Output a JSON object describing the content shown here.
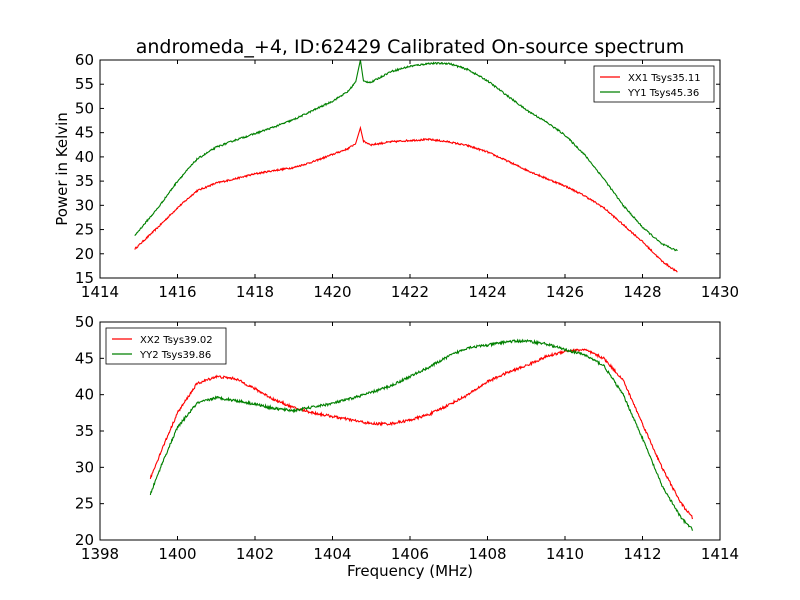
{
  "colors": {
    "xx": "#ff0000",
    "yy": "#008000",
    "axis": "#000000",
    "background": "#ffffff"
  },
  "chart_data": [
    {
      "type": "line",
      "title": "andromeda_+4, ID:62429 Calibrated On-source spectrum",
      "xlabel": "",
      "ylabel": "Power in Kelvin",
      "xlim": [
        1414,
        1430
      ],
      "ylim": [
        15,
        60
      ],
      "xticks": [
        1414,
        1416,
        1418,
        1420,
        1422,
        1424,
        1426,
        1428,
        1430
      ],
      "yticks": [
        15,
        20,
        25,
        30,
        35,
        40,
        45,
        50,
        55,
        60
      ],
      "legend_position": "top-right",
      "grid": false,
      "series": [
        {
          "name": "XX1 Tsys35.11",
          "color": "#ff0000",
          "x": [
            1414.9,
            1415.5,
            1416.0,
            1416.5,
            1417.0,
            1417.5,
            1418.0,
            1418.5,
            1419.0,
            1419.5,
            1420.0,
            1420.4,
            1420.6,
            1420.72,
            1420.8,
            1421.0,
            1421.5,
            1422.0,
            1422.5,
            1423.0,
            1423.5,
            1424.0,
            1424.5,
            1425.0,
            1425.5,
            1426.0,
            1426.5,
            1427.0,
            1427.5,
            1428.0,
            1428.5,
            1428.9
          ],
          "y": [
            21.0,
            25.5,
            29.5,
            33.0,
            34.6,
            35.5,
            36.5,
            37.2,
            37.8,
            39.0,
            40.5,
            41.7,
            42.8,
            46.0,
            43.2,
            42.5,
            43.1,
            43.4,
            43.6,
            43.1,
            42.3,
            41.0,
            39.2,
            37.3,
            35.6,
            34.0,
            32.0,
            29.5,
            26.0,
            22.5,
            18.5,
            16.2
          ]
        },
        {
          "name": "YY1 Tsys45.36",
          "color": "#008000",
          "x": [
            1414.9,
            1415.5,
            1416.0,
            1416.5,
            1417.0,
            1417.5,
            1418.0,
            1418.5,
            1419.0,
            1419.5,
            1420.0,
            1420.4,
            1420.6,
            1420.72,
            1420.8,
            1421.0,
            1421.5,
            1422.0,
            1422.5,
            1423.0,
            1423.5,
            1424.0,
            1424.5,
            1425.0,
            1425.5,
            1426.0,
            1426.5,
            1427.0,
            1427.5,
            1428.0,
            1428.5,
            1428.9
          ],
          "y": [
            23.8,
            29.5,
            35.0,
            39.5,
            42.0,
            43.5,
            44.8,
            46.2,
            47.7,
            49.6,
            51.5,
            53.5,
            55.5,
            60.0,
            55.6,
            55.4,
            57.6,
            58.7,
            59.3,
            59.3,
            58.0,
            55.7,
            52.7,
            49.7,
            47.3,
            44.5,
            40.5,
            35.5,
            30.0,
            25.5,
            22.0,
            20.6
          ]
        }
      ]
    },
    {
      "type": "line",
      "title": "",
      "xlabel": "Frequency (MHz)",
      "ylabel": "",
      "xlim": [
        1398,
        1414
      ],
      "ylim": [
        20,
        50
      ],
      "xticks": [
        1398,
        1400,
        1402,
        1404,
        1406,
        1408,
        1410,
        1412,
        1414
      ],
      "yticks": [
        20,
        25,
        30,
        35,
        40,
        45,
        50
      ],
      "legend_position": "top-left",
      "grid": false,
      "series": [
        {
          "name": "XX2 Tsys39.02",
          "color": "#ff0000",
          "x": [
            1399.3,
            1399.6,
            1400.0,
            1400.5,
            1401.0,
            1401.5,
            1402.0,
            1402.5,
            1403.0,
            1403.5,
            1404.0,
            1404.5,
            1405.0,
            1405.5,
            1406.0,
            1406.5,
            1407.0,
            1407.5,
            1408.0,
            1408.5,
            1409.0,
            1409.5,
            1410.0,
            1410.5,
            1411.0,
            1411.5,
            1412.0,
            1412.5,
            1413.0,
            1413.3
          ],
          "y": [
            28.5,
            32.5,
            37.5,
            41.5,
            42.5,
            42.2,
            40.8,
            39.3,
            38.2,
            37.5,
            37.0,
            36.5,
            36.0,
            36.0,
            36.5,
            37.3,
            38.6,
            40.0,
            41.8,
            43.0,
            44.0,
            45.2,
            46.0,
            46.2,
            45.0,
            42.0,
            36.0,
            30.0,
            25.0,
            23.0
          ]
        },
        {
          "name": "YY2 Tsys39.86",
          "color": "#008000",
          "x": [
            1399.3,
            1399.6,
            1400.0,
            1400.5,
            1401.0,
            1401.5,
            1402.0,
            1402.5,
            1403.0,
            1403.5,
            1404.0,
            1404.5,
            1405.0,
            1405.5,
            1406.0,
            1406.5,
            1407.0,
            1407.5,
            1408.0,
            1408.5,
            1409.0,
            1409.5,
            1410.0,
            1410.5,
            1411.0,
            1411.5,
            1412.0,
            1412.5,
            1413.0,
            1413.3
          ],
          "y": [
            26.3,
            30.5,
            35.5,
            38.8,
            39.6,
            39.2,
            38.7,
            38.1,
            37.8,
            38.3,
            38.8,
            39.5,
            40.3,
            41.2,
            42.5,
            43.8,
            45.3,
            46.5,
            46.8,
            47.3,
            47.4,
            47.0,
            46.2,
            45.5,
            44.0,
            40.0,
            34.0,
            27.5,
            23.0,
            21.4
          ]
        }
      ]
    }
  ]
}
